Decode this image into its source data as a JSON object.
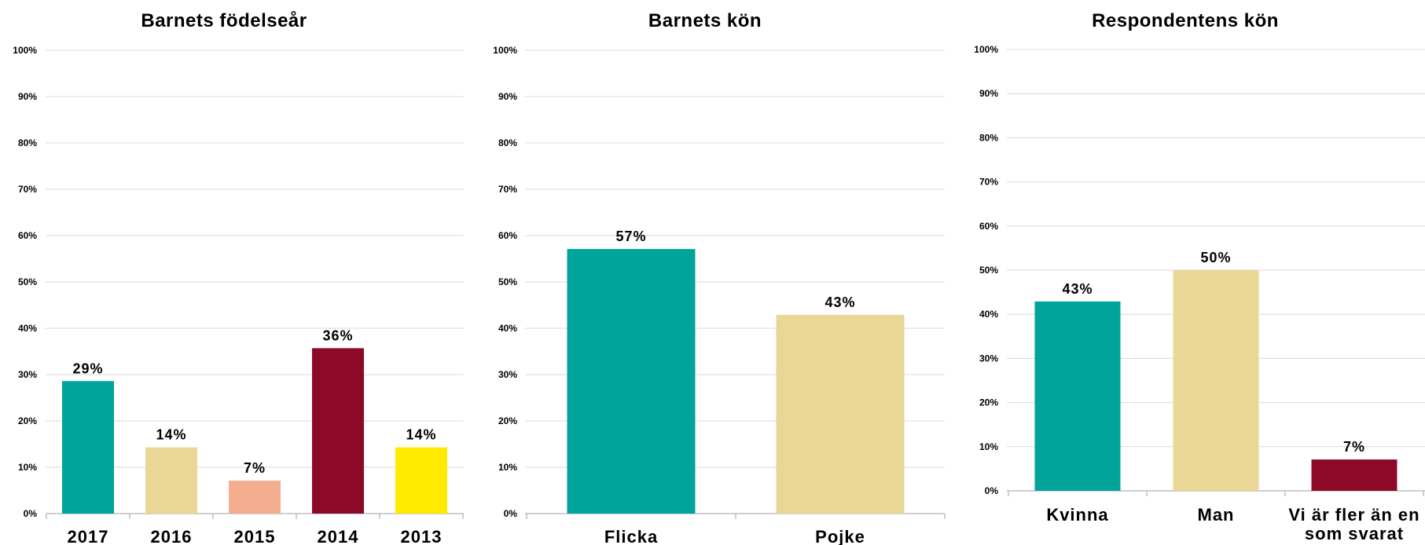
{
  "chart_data": [
    {
      "type": "bar",
      "title": "Barnets födelseår",
      "categories": [
        "2017",
        "2016",
        "2015",
        "2014",
        "2013"
      ],
      "values": [
        29,
        14,
        7,
        36,
        14
      ],
      "exact_values": [
        28.6,
        14.3,
        7.1,
        35.7,
        14.3
      ],
      "data_labels": [
        "29%",
        "14%",
        "7%",
        "36%",
        "14%"
      ],
      "colors": [
        "#00a49a",
        "#ead696",
        "#f5ad90",
        "#8c0a27",
        "#ffea00"
      ],
      "ylim": [
        0,
        100
      ],
      "yticks": [
        "0%",
        "10%",
        "20%",
        "30%",
        "40%",
        "50%",
        "60%",
        "70%",
        "80%",
        "90%",
        "100%"
      ],
      "grid": true
    },
    {
      "type": "bar",
      "title": "Barnets kön",
      "categories": [
        "Flicka",
        "Pojke"
      ],
      "values": [
        57,
        43
      ],
      "exact_values": [
        57.1,
        42.9
      ],
      "data_labels": [
        "57%",
        "43%"
      ],
      "colors": [
        "#00a49a",
        "#ead696"
      ],
      "ylim": [
        0,
        100
      ],
      "yticks": [
        "0%",
        "10%",
        "20%",
        "30%",
        "40%",
        "50%",
        "60%",
        "70%",
        "80%",
        "90%",
        "100%"
      ],
      "grid": true
    },
    {
      "type": "bar",
      "title": "Respondentens kön",
      "categories": [
        [
          "Kvinna"
        ],
        [
          "Man"
        ],
        [
          "Vi är fler än en",
          "som svarat"
        ]
      ],
      "values": [
        43,
        50,
        7
      ],
      "exact_values": [
        42.9,
        50,
        7.1
      ],
      "data_labels": [
        "43%",
        "50%",
        "7%"
      ],
      "colors": [
        "#00a49a",
        "#ead696",
        "#8c0a27"
      ],
      "ylim": [
        0,
        100
      ],
      "yticks": [
        "0%",
        "10%",
        "20%",
        "30%",
        "40%",
        "50%",
        "60%",
        "70%",
        "80%",
        "90%",
        "100%"
      ],
      "grid": true
    }
  ]
}
